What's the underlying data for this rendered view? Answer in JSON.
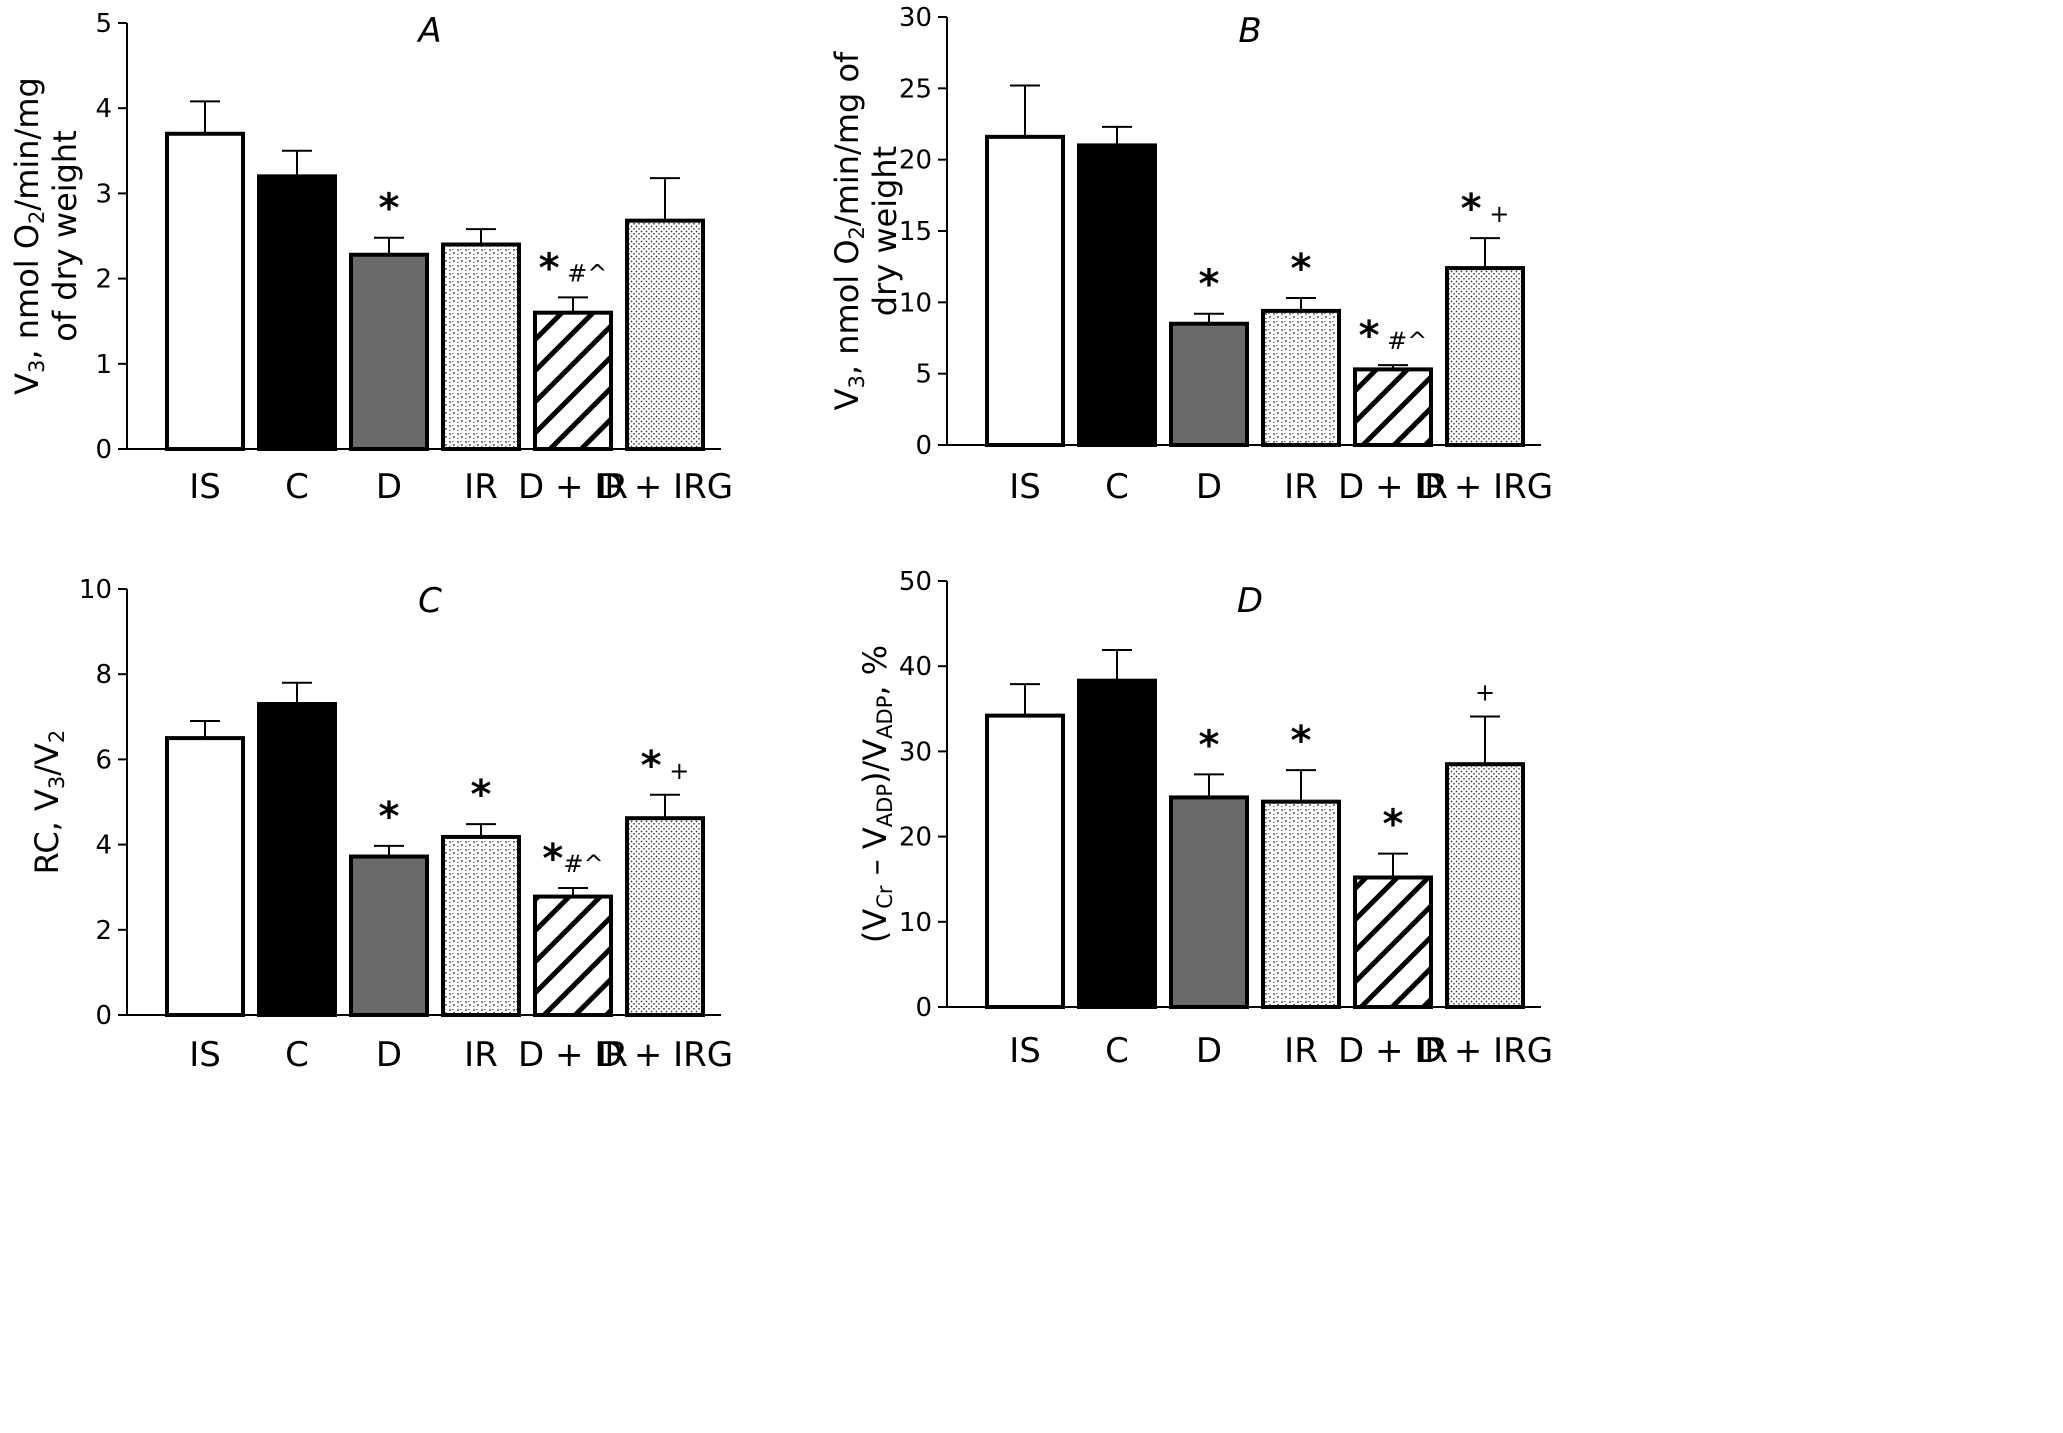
{
  "chart_data": [
    {
      "type": "bar",
      "panel": "A",
      "ylabel": {
        "line1_parts": [
          {
            "text": "V",
            "sub": false
          },
          {
            "text": "3",
            "sub": true
          },
          {
            "text": ", nmol O",
            "sub": false
          },
          {
            "text": "2",
            "sub": true
          },
          {
            "text": "/min/mg",
            "sub": false
          }
        ],
        "line2": "of dry weight"
      },
      "ylim": [
        0,
        5
      ],
      "yticks": [
        0,
        1,
        2,
        3,
        4,
        5
      ],
      "categories": [
        "IS",
        "C",
        "D",
        "IR",
        "D + IR",
        "D + IRG"
      ],
      "values": [
        3.7,
        3.2,
        2.28,
        2.4,
        1.6,
        2.68
      ],
      "errors": [
        0.38,
        0.3,
        0.2,
        0.18,
        0.18,
        0.5
      ],
      "annotations": [
        "",
        "",
        "*",
        "",
        "* #^",
        ""
      ]
    },
    {
      "type": "bar",
      "panel": "B",
      "ylabel": {
        "line1_parts": [
          {
            "text": "V",
            "sub": false
          },
          {
            "text": "3",
            "sub": true
          },
          {
            "text": ", nmol O",
            "sub": false
          },
          {
            "text": "2",
            "sub": true
          },
          {
            "text": "/min/mg of",
            "sub": false
          }
        ],
        "line2": "dry weight"
      },
      "ylim": [
        0,
        30
      ],
      "yticks": [
        0,
        5,
        10,
        15,
        20,
        25,
        30
      ],
      "categories": [
        "IS",
        "C",
        "D",
        "IR",
        "D + IR",
        "D + IRG"
      ],
      "values": [
        21.6,
        21.0,
        8.5,
        9.4,
        5.3,
        12.4
      ],
      "errors": [
        3.6,
        1.3,
        0.7,
        0.9,
        0.3,
        2.1
      ],
      "annotations": [
        "",
        "",
        "*",
        "*",
        "* #^",
        "* +"
      ]
    },
    {
      "type": "bar",
      "panel": "C",
      "ylabel": {
        "line1_parts": [
          {
            "text": "RC, V",
            "sub": false
          },
          {
            "text": "3",
            "sub": true
          },
          {
            "text": "/V",
            "sub": false
          },
          {
            "text": "2",
            "sub": true
          }
        ],
        "line2": ""
      },
      "ylim": [
        0,
        10
      ],
      "yticks": [
        0,
        2,
        4,
        6,
        8,
        10
      ],
      "categories": [
        "IS",
        "C",
        "D",
        "IR",
        "D + IR",
        "D + IRG"
      ],
      "values": [
        6.5,
        7.3,
        3.72,
        4.18,
        2.78,
        4.62
      ],
      "errors": [
        0.4,
        0.5,
        0.25,
        0.3,
        0.2,
        0.55
      ],
      "annotations": [
        "",
        "",
        "*",
        "*",
        "*#^",
        "* +"
      ]
    },
    {
      "type": "bar",
      "panel": "D",
      "ylabel": {
        "line1_parts": [
          {
            "text": "(V",
            "sub": false
          },
          {
            "text": "Cr",
            "sub": true
          },
          {
            "text": " – V",
            "sub": false
          },
          {
            "text": "ADP",
            "sub": true
          },
          {
            "text": ")/V",
            "sub": false
          },
          {
            "text": "ADP",
            "sub": true
          },
          {
            "text": ", %",
            "sub": false
          }
        ],
        "line2": ""
      },
      "ylim": [
        0,
        50
      ],
      "yticks": [
        0,
        10,
        20,
        30,
        40,
        50
      ],
      "categories": [
        "IS",
        "C",
        "D",
        "IR",
        "D + IR",
        "D + IRG"
      ],
      "values": [
        34.2,
        38.3,
        24.6,
        24.1,
        15.2,
        28.5
      ],
      "errors": [
        3.7,
        3.6,
        2.7,
        3.7,
        2.8,
        5.6
      ],
      "annotations": [
        "",
        "",
        "*",
        "*",
        "*",
        "+"
      ]
    }
  ],
  "colors": {
    "IS": "#ffffff",
    "C": "#000000",
    "D": "#6a6a6a",
    "IR": "pattern-fine-dots",
    "D + IR": "pattern-diagonal-hatch",
    "D + IRG": "pattern-dense-dots"
  }
}
